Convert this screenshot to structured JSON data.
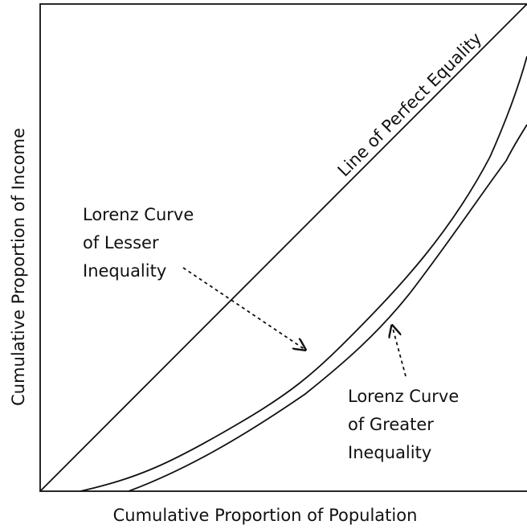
{
  "diagram": {
    "x_axis_label": "Cumulative Proportion of Population",
    "y_axis_label": "Cumulative Proportion of Income",
    "equality_label": "Line of Perfect Equality",
    "lesser_label": [
      "Lorenz Curve",
      "of Lesser",
      "Inequality"
    ],
    "greater_label": [
      "Lorenz Curve",
      "of Greater",
      "Inequality"
    ]
  }
}
